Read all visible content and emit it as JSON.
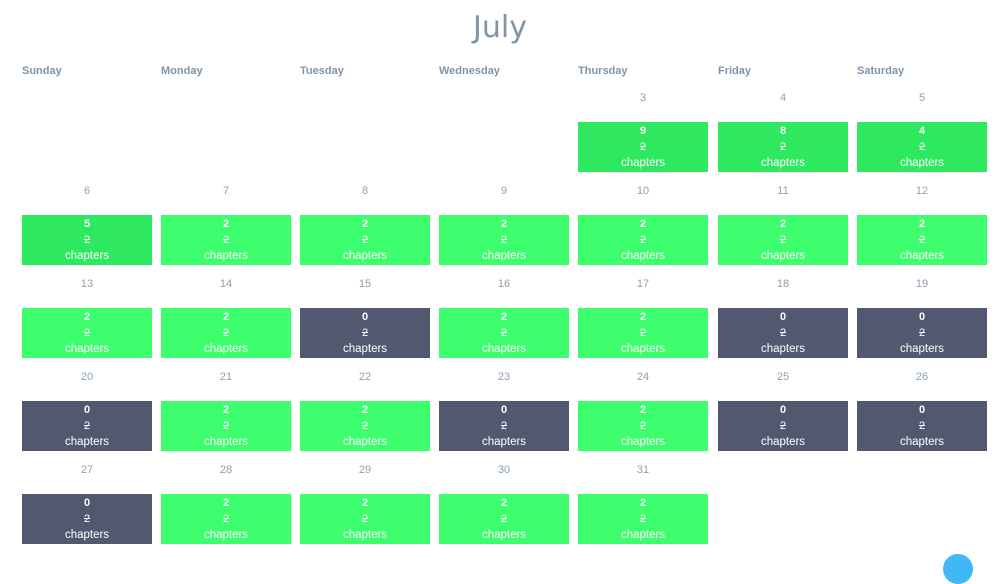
{
  "month": "July",
  "weekdays": [
    "Sunday",
    "Monday",
    "Tuesday",
    "Wednesday",
    "Thursday",
    "Friday",
    "Saturday"
  ],
  "first_weekday_index": 4,
  "unit_label": "chapters",
  "colors": {
    "met": "#3dff6e",
    "exceeded": "#2ee85f",
    "missed": "#525870",
    "title": "#7f94a6",
    "fab": "#3fb8f5"
  },
  "days": [
    {
      "day": "3",
      "read": "9",
      "goal": "2",
      "status": "exceeded"
    },
    {
      "day": "4",
      "read": "8",
      "goal": "2",
      "status": "exceeded"
    },
    {
      "day": "5",
      "read": "4",
      "goal": "2",
      "status": "exceeded"
    },
    {
      "day": "6",
      "read": "5",
      "goal": "2",
      "status": "exceeded"
    },
    {
      "day": "7",
      "read": "2",
      "goal": "2",
      "status": "met"
    },
    {
      "day": "8",
      "read": "2",
      "goal": "2",
      "status": "met"
    },
    {
      "day": "9",
      "read": "2",
      "goal": "2",
      "status": "met"
    },
    {
      "day": "10",
      "read": "2",
      "goal": "2",
      "status": "met"
    },
    {
      "day": "11",
      "read": "2",
      "goal": "2",
      "status": "met"
    },
    {
      "day": "12",
      "read": "2",
      "goal": "2",
      "status": "met"
    },
    {
      "day": "13",
      "read": "2",
      "goal": "2",
      "status": "met"
    },
    {
      "day": "14",
      "read": "2",
      "goal": "2",
      "status": "met"
    },
    {
      "day": "15",
      "read": "0",
      "goal": "2",
      "status": "missed"
    },
    {
      "day": "16",
      "read": "2",
      "goal": "2",
      "status": "met"
    },
    {
      "day": "17",
      "read": "2",
      "goal": "2",
      "status": "met"
    },
    {
      "day": "18",
      "read": "0",
      "goal": "2",
      "status": "missed"
    },
    {
      "day": "19",
      "read": "0",
      "goal": "2",
      "status": "missed"
    },
    {
      "day": "20",
      "read": "0",
      "goal": "2",
      "status": "missed"
    },
    {
      "day": "21",
      "read": "2",
      "goal": "2",
      "status": "met"
    },
    {
      "day": "22",
      "read": "2",
      "goal": "2",
      "status": "met"
    },
    {
      "day": "23",
      "read": "0",
      "goal": "2",
      "status": "missed"
    },
    {
      "day": "24",
      "read": "2",
      "goal": "2",
      "status": "met"
    },
    {
      "day": "25",
      "read": "0",
      "goal": "2",
      "status": "missed"
    },
    {
      "day": "26",
      "read": "0",
      "goal": "2",
      "status": "missed"
    },
    {
      "day": "27",
      "read": "0",
      "goal": "2",
      "status": "missed"
    },
    {
      "day": "28",
      "read": "2",
      "goal": "2",
      "status": "met"
    },
    {
      "day": "29",
      "read": "2",
      "goal": "2",
      "status": "met"
    },
    {
      "day": "30",
      "read": "2",
      "goal": "2",
      "status": "met"
    },
    {
      "day": "31",
      "read": "2",
      "goal": "2",
      "status": "met"
    }
  ]
}
